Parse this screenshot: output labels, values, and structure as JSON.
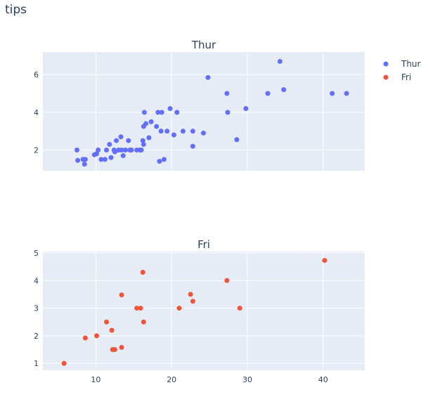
{
  "title": "tips",
  "colors": {
    "plot_bg": "#e5ecf6",
    "grid": "#ffffff",
    "text": "#2a3f5f"
  },
  "legend": {
    "placement": "top-right",
    "items": [
      {
        "name": "Thur",
        "color": "#636efa"
      },
      {
        "name": "Fri",
        "color": "#ef553b"
      }
    ]
  },
  "chart_data": [
    {
      "type": "scatter",
      "title": "Thur",
      "xlim": [
        3,
        45.5
      ],
      "ylim": [
        0.9,
        7.2
      ],
      "xticks": [],
      "yticks": [
        2,
        4,
        6
      ],
      "grid": true,
      "series": [
        {
          "name": "Thur",
          "color": "#636efa",
          "points": [
            [
              7.5,
              2.0
            ],
            [
              7.6,
              1.45
            ],
            [
              8.3,
              1.5
            ],
            [
              8.5,
              1.25
            ],
            [
              8.6,
              1.5
            ],
            [
              9.8,
              1.75
            ],
            [
              10.1,
              1.8
            ],
            [
              10.3,
              2.0
            ],
            [
              10.7,
              1.5
            ],
            [
              11.2,
              1.5
            ],
            [
              11.4,
              2.0
            ],
            [
              11.8,
              2.3
            ],
            [
              12.0,
              1.6
            ],
            [
              12.4,
              2.0
            ],
            [
              12.5,
              1.9
            ],
            [
              12.7,
              2.5
            ],
            [
              13.0,
              2.0
            ],
            [
              13.3,
              2.7
            ],
            [
              13.4,
              2.0
            ],
            [
              13.6,
              1.7
            ],
            [
              13.9,
              2.0
            ],
            [
              14.3,
              2.5
            ],
            [
              14.5,
              2.0
            ],
            [
              14.7,
              2.0
            ],
            [
              15.4,
              2.0
            ],
            [
              15.8,
              2.0
            ],
            [
              16.0,
              2.0
            ],
            [
              16.2,
              2.5
            ],
            [
              16.3,
              2.3
            ],
            [
              16.3,
              3.25
            ],
            [
              16.4,
              4.0
            ],
            [
              16.6,
              3.4
            ],
            [
              17.0,
              2.65
            ],
            [
              17.3,
              3.5
            ],
            [
              18.0,
              3.25
            ],
            [
              18.2,
              4.0
            ],
            [
              18.4,
              1.4
            ],
            [
              18.6,
              3.0
            ],
            [
              18.7,
              4.0
            ],
            [
              19.0,
              1.5
            ],
            [
              19.4,
              3.0
            ],
            [
              19.8,
              4.2
            ],
            [
              20.3,
              2.8
            ],
            [
              20.7,
              4.0
            ],
            [
              21.5,
              3.0
            ],
            [
              22.8,
              2.2
            ],
            [
              22.8,
              3.0
            ],
            [
              24.2,
              2.9
            ],
            [
              24.8,
              5.85
            ],
            [
              27.3,
              5.0
            ],
            [
              27.4,
              4.0
            ],
            [
              28.6,
              2.55
            ],
            [
              29.8,
              4.2
            ],
            [
              32.7,
              5.0
            ],
            [
              34.3,
              6.7
            ],
            [
              34.8,
              5.2
            ],
            [
              41.2,
              5.0
            ],
            [
              43.1,
              5.0
            ]
          ]
        }
      ]
    },
    {
      "type": "scatter",
      "title": "Fri",
      "xlim": [
        3,
        45.5
      ],
      "ylim": [
        0.75,
        5.05
      ],
      "xticks": [
        10,
        20,
        30,
        40
      ],
      "yticks": [
        1,
        2,
        3,
        4,
        5
      ],
      "grid": true,
      "series": [
        {
          "name": "Fri",
          "color": "#ef553b",
          "points": [
            [
              5.8,
              1.0
            ],
            [
              8.6,
              1.92
            ],
            [
              10.1,
              2.0
            ],
            [
              11.4,
              2.5
            ],
            [
              12.1,
              2.2
            ],
            [
              12.2,
              1.5
            ],
            [
              12.5,
              1.5
            ],
            [
              13.4,
              1.58
            ],
            [
              13.4,
              3.48
            ],
            [
              15.4,
              3.0
            ],
            [
              15.9,
              3.0
            ],
            [
              16.2,
              4.3
            ],
            [
              16.3,
              2.5
            ],
            [
              21.0,
              3.0
            ],
            [
              22.5,
              3.5
            ],
            [
              22.8,
              3.25
            ],
            [
              27.3,
              4.0
            ],
            [
              29.0,
              3.0
            ],
            [
              40.2,
              4.73
            ]
          ]
        }
      ]
    }
  ]
}
